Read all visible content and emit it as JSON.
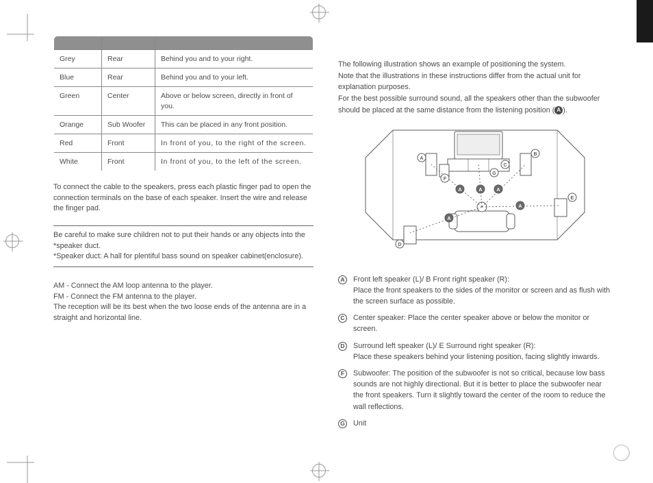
{
  "table": {
    "header_bg": "#8f8f8f",
    "rows": [
      {
        "color": "Grey",
        "speaker": "Rear",
        "position": "Behind you and to your right."
      },
      {
        "color": "Blue",
        "speaker": "Rear",
        "position": "Behind you and to your left."
      },
      {
        "color": "Green",
        "speaker": "Center",
        "position": "Above or below screen, directly in front of you."
      },
      {
        "color": "Orange",
        "speaker": "Sub Woofer",
        "position": "This can be placed in any front position."
      },
      {
        "color": "Red",
        "speaker": "Front",
        "position": "In front of you, to the right of the screen.",
        "stretch": true
      },
      {
        "color": "White",
        "speaker": "Front",
        "position": "In front of you, to the left of the screen.",
        "stretch": true
      }
    ]
  },
  "left": {
    "connect": "To connect the cable to the speakers, press each plastic finger pad to open the connection terminals on the base of each speaker. Insert the wire and release the finger pad.",
    "caution1": "Be careful to make sure children not to put their hands or any objects into the *speaker duct.",
    "caution2": "*Speaker duct: A hall for plentiful bass sound on speaker cabinet(enclosure).",
    "am": "AM - Connect the AM loop antenna to the player.",
    "fm": "FM - Connect the FM antenna to the player.",
    "reception": "The reception will be its best when the two loose ends of the  antenna are in a straight and horizontal line."
  },
  "right": {
    "intro1": "The following illustration shows an example of positioning the system.",
    "intro2": "Note that the illustrations in these instructions differ from the actual unit for explanation purposes.",
    "intro3a": "For the best possible surround sound, all the speakers other than the subwoofer should be placed at the same distance from the listening position (",
    "intro3b": ").",
    "legend": {
      "A_prefix": "Front left speaker (L)/ ",
      "A_suffix": " Front right speaker (R):",
      "A_body": "Place the front speakers to the sides of the monitor or screen and as flush with the screen surface as possible.",
      "C": "Center speaker: Place the center speaker above or below the monitor or screen.",
      "D_prefix": "Surround left speaker (L)/ ",
      "D_suffix": " Surround right speaker (R):",
      "D_body": "Place these speakers behind your listening position, facing slightly inwards.",
      "F": "Subwoofer: The position of the subwoofer is not so critical, because low bass sounds are not highly directional. But it is better to place the subwoofer near the front speakers. Turn it slightly toward the center of the room to reduce the wall reflections.",
      "G": "Unit"
    }
  },
  "diagram": {
    "stroke": "#5b5b5b",
    "fill_dark": "#6a6a6a",
    "fill_light": "#ffffff",
    "dash": "2,3",
    "labels": [
      "A",
      "B",
      "C",
      "D",
      "E",
      "F",
      "G"
    ]
  }
}
